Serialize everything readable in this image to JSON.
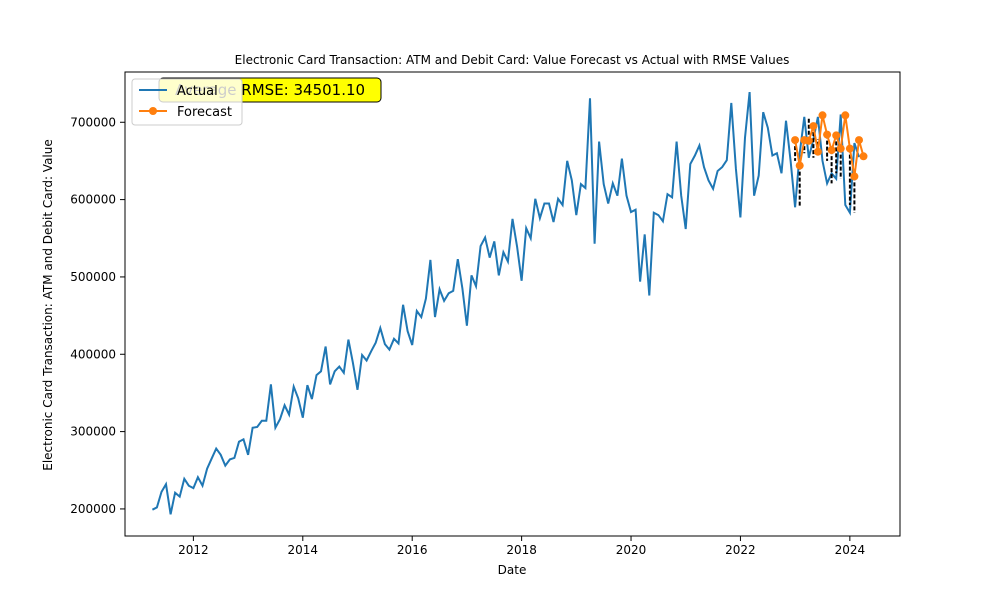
{
  "chart_data": {
    "type": "line",
    "title": "Electronic Card Transaction: ATM and Debit Card: Value Forecast vs Actual with RMSE Values",
    "xlabel": "Date",
    "ylabel": "Electronic Card Transaction: ATM and Debit Card: Value",
    "x_axis": {
      "type": "date",
      "range": [
        "2010-10-01",
        "2024-12-01"
      ],
      "ticks": [
        "2012",
        "2014",
        "2016",
        "2018",
        "2020",
        "2022",
        "2024"
      ]
    },
    "y_axis": {
      "range": [
        165000,
        765000
      ],
      "ticks": [
        200000,
        300000,
        400000,
        500000,
        600000,
        700000
      ],
      "tick_labels": [
        "200000",
        "300000",
        "400000",
        "500000",
        "600000",
        "700000"
      ]
    },
    "grid": false,
    "legend": {
      "position": "top-left",
      "entries": [
        "Actual",
        "Forecast"
      ]
    },
    "annotation": {
      "text": "Average RMSE: 34501.10",
      "background": "#ffff00"
    },
    "colors": {
      "actual": "#1f77b4",
      "forecast": "#ff7f0e",
      "error_lines": "#000000"
    },
    "actual": {
      "name": "Actual",
      "start": "2011-04",
      "frequency": "monthly",
      "values": [
        199000,
        202000,
        222000,
        232000,
        193000,
        221000,
        216000,
        239000,
        230000,
        227000,
        241000,
        230000,
        252000,
        265000,
        278000,
        270000,
        256000,
        264000,
        266000,
        287000,
        290000,
        270000,
        305000,
        306000,
        314000,
        314000,
        361000,
        305000,
        316000,
        334000,
        322000,
        358000,
        343000,
        318000,
        360000,
        342000,
        373000,
        378000,
        410000,
        361000,
        378000,
        384000,
        376000,
        419000,
        389000,
        354000,
        399000,
        392000,
        404000,
        415000,
        434000,
        413000,
        406000,
        420000,
        414000,
        464000,
        430000,
        412000,
        456000,
        448000,
        472000,
        522000,
        448000,
        484000,
        469000,
        479000,
        482000,
        523000,
        485000,
        437000,
        502000,
        488000,
        540000,
        551000,
        525000,
        546000,
        502000,
        532000,
        520000,
        575000,
        539000,
        495000,
        563000,
        550000,
        601000,
        576000,
        595000,
        595000,
        571000,
        601000,
        593000,
        650000,
        625000,
        580000,
        620000,
        615000,
        731000,
        543000,
        675000,
        620000,
        595000,
        621000,
        605000,
        653000,
        605000,
        584000,
        587000,
        494000,
        555000,
        476000,
        583000,
        580000,
        572000,
        607000,
        603000,
        675000,
        605000,
        562000,
        646000,
        657000,
        670000,
        642000,
        625000,
        614000,
        637000,
        642000,
        651000,
        725000,
        640000,
        577000,
        680000,
        739000,
        605000,
        631000,
        713000,
        693000,
        657000,
        660000,
        634000,
        702000,
        650000,
        590000,
        660000,
        707000,
        654000,
        678000,
        707000,
        650000,
        621000,
        634000,
        627000,
        710000,
        593000,
        583000,
        673000,
        655000
      ]
    },
    "forecast": {
      "name": "Forecast",
      "start": "2023-01",
      "frequency": "monthly",
      "values": [
        677000,
        644000,
        677000,
        676000,
        695000,
        662000,
        709000,
        684000,
        664000,
        683000,
        666000,
        709000,
        666000,
        630000,
        677000,
        656000
      ]
    }
  }
}
